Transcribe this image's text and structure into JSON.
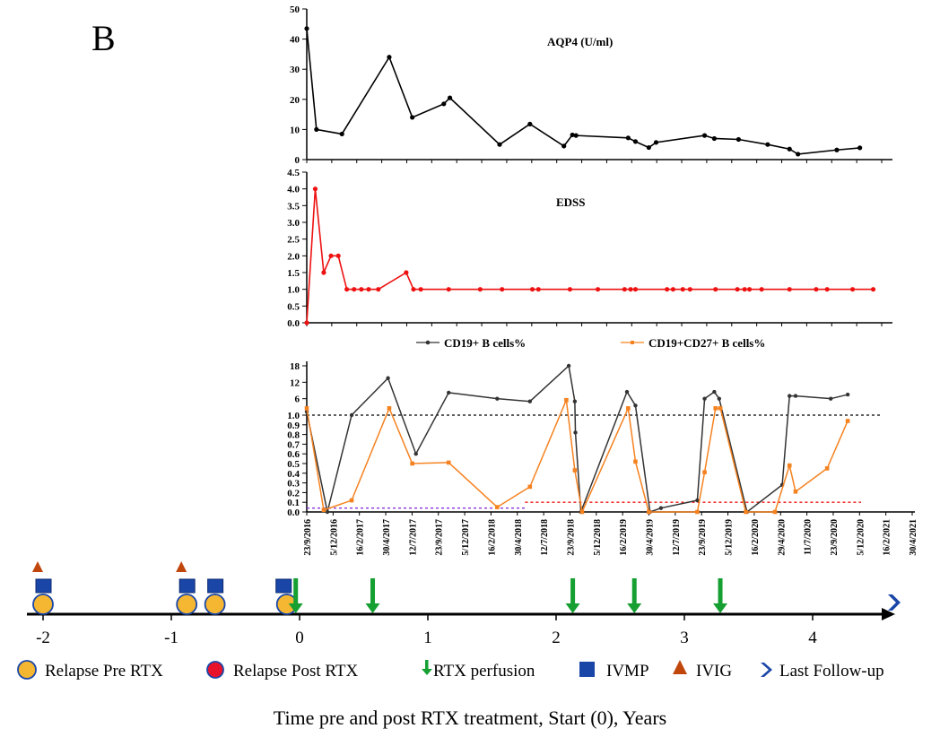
{
  "panel_label": "B",
  "chart_data": [
    {
      "type": "line",
      "title": "AQP4 (U/ml)",
      "ylim": [
        0,
        50
      ],
      "yticks": [
        "0",
        "10",
        "20",
        "30",
        "40",
        "50"
      ],
      "xlim_years": [
        -0.02,
        4.72
      ],
      "color": "#000000",
      "points": [
        [
          -0.02,
          43.5
        ],
        [
          0.06,
          10
        ],
        [
          0.27,
          8.5
        ],
        [
          0.66,
          34
        ],
        [
          0.85,
          14
        ],
        [
          1.11,
          18.5
        ],
        [
          1.16,
          20.5
        ],
        [
          1.57,
          5
        ],
        [
          1.82,
          11.8
        ],
        [
          2.1,
          4.5
        ],
        [
          2.17,
          8.2
        ],
        [
          2.2,
          8
        ],
        [
          2.63,
          7.2
        ],
        [
          2.69,
          6
        ],
        [
          2.8,
          4
        ],
        [
          2.86,
          5.7
        ],
        [
          3.26,
          8
        ],
        [
          3.34,
          7
        ],
        [
          3.54,
          6.7
        ],
        [
          3.78,
          5
        ],
        [
          3.96,
          3.5
        ],
        [
          4.03,
          1.8
        ],
        [
          4.35,
          3.2
        ],
        [
          4.54,
          3.9
        ]
      ]
    },
    {
      "type": "line",
      "title": "EDSS",
      "ylim": [
        0,
        4.5
      ],
      "yticks": [
        "0.0",
        "0.5",
        "1.0",
        "1.5",
        "2.0",
        "2.5",
        "3.0",
        "3.5",
        "4.0",
        "4.5"
      ],
      "xlim_years": [
        -0.02,
        4.72
      ],
      "color": "#ee1111",
      "points": [
        [
          -0.02,
          0
        ],
        [
          0.05,
          4
        ],
        [
          0.12,
          1.5
        ],
        [
          0.18,
          2
        ],
        [
          0.24,
          2
        ],
        [
          0.31,
          1
        ],
        [
          0.37,
          1
        ],
        [
          0.43,
          1
        ],
        [
          0.49,
          1
        ],
        [
          0.57,
          1
        ],
        [
          0.8,
          1.5
        ],
        [
          0.86,
          1
        ],
        [
          0.92,
          1
        ],
        [
          1.15,
          1
        ],
        [
          1.41,
          1
        ],
        [
          1.59,
          1
        ],
        [
          1.84,
          1
        ],
        [
          1.89,
          1
        ],
        [
          2.15,
          1
        ],
        [
          2.38,
          1
        ],
        [
          2.6,
          1
        ],
        [
          2.65,
          1
        ],
        [
          2.69,
          1
        ],
        [
          2.95,
          1
        ],
        [
          3.0,
          1
        ],
        [
          3.08,
          1
        ],
        [
          3.14,
          1
        ],
        [
          3.35,
          1
        ],
        [
          3.53,
          1
        ],
        [
          3.59,
          1
        ],
        [
          3.63,
          1
        ],
        [
          3.73,
          1
        ],
        [
          3.96,
          1
        ],
        [
          4.18,
          1
        ],
        [
          4.27,
          1
        ],
        [
          4.48,
          1
        ],
        [
          4.65,
          1
        ]
      ]
    },
    {
      "type": "line",
      "title": "",
      "y_upper_ticks": [
        "6",
        "12",
        "18"
      ],
      "y_lower_ticks": [
        "0.0",
        "0.1",
        "0.2",
        "0.3",
        "0.4",
        "0.5",
        "0.6",
        "0.7",
        "0.8",
        "0.9",
        "1.0"
      ],
      "x_tick_labels": [
        "23/9/2016",
        "5/12/2016",
        "16/2/2017",
        "30/4/2017",
        "12/7/2017",
        "23/9/2017",
        "5/12/2017",
        "16/2/2018",
        "30/4/2018",
        "12/7/2018",
        "23/9/2018",
        "5/12/2018",
        "16/2/2019",
        "30/4/2019",
        "12/7/2019",
        "23/9/2019",
        "5/12/2019",
        "16/2/2020",
        "29/4/2020",
        "11/7/2020",
        "23/9/2020",
        "5/12/2020",
        "16/2/2021",
        "30/4/2021"
      ],
      "reference_lines": [
        {
          "value": 1.0,
          "color": "#000000",
          "from_year": -0.02,
          "to_year": 4.72
        },
        {
          "value": 0.1,
          "color": "#ee1111",
          "from_year": 1.78,
          "to_year": 4.55
        },
        {
          "value": 0.04,
          "color": "#8833dd",
          "from_year": -0.02,
          "to_year": 1.78
        }
      ],
      "series": [
        {
          "name": "CD19+ B cells%",
          "color": "#333333",
          "points": [
            [
              -0.02,
              1.2
            ],
            [
              0.15,
              0
            ],
            [
              0.35,
              1.0
            ],
            [
              0.65,
              13.5
            ],
            [
              0.88,
              0.6
            ],
            [
              1.15,
              8.2
            ],
            [
              1.55,
              6
            ],
            [
              1.82,
              5
            ],
            [
              2.14,
              18
            ],
            [
              2.19,
              5
            ],
            [
              2.195,
              0.82
            ],
            [
              2.24,
              0
            ],
            [
              2.62,
              8.5
            ],
            [
              2.69,
              3.5
            ],
            [
              2.81,
              0
            ],
            [
              2.9,
              0.04
            ],
            [
              3.2,
              0.12
            ],
            [
              3.26,
              6
            ],
            [
              3.34,
              8.5
            ],
            [
              3.38,
              6
            ],
            [
              3.61,
              0
            ],
            [
              3.9,
              0.28
            ],
            [
              3.96,
              7
            ],
            [
              4.01,
              7
            ],
            [
              4.3,
              6
            ],
            [
              4.44,
              7.5
            ]
          ]
        },
        {
          "name": "CD19+CD27+ B cells%",
          "color": "#f58220",
          "points": [
            [
              -0.02,
              2.5
            ],
            [
              0.12,
              0.02
            ],
            [
              0.35,
              0.12
            ],
            [
              0.66,
              2.5
            ],
            [
              0.85,
              0.5
            ],
            [
              1.15,
              0.51
            ],
            [
              1.55,
              0.05
            ],
            [
              1.82,
              0.26
            ],
            [
              2.12,
              5.5
            ],
            [
              2.19,
              0.43
            ],
            [
              2.25,
              0
            ],
            [
              2.63,
              2.5
            ],
            [
              2.69,
              0.52
            ],
            [
              2.8,
              0
            ],
            [
              3.2,
              0
            ],
            [
              3.26,
              0.41
            ],
            [
              3.35,
              2.5
            ],
            [
              3.39,
              2.5
            ],
            [
              3.6,
              0
            ],
            [
              3.84,
              0
            ],
            [
              3.96,
              0.48
            ],
            [
              4.01,
              0.21
            ],
            [
              4.27,
              0.45
            ],
            [
              4.44,
              0.94
            ]
          ]
        }
      ]
    }
  ],
  "legend_top": {
    "cd19": "CD19+ B cells%",
    "cd1927": "CD19+CD27+ B cells%"
  },
  "timeline": {
    "x_ticks": [
      "-2",
      "-1",
      "0",
      "1",
      "2",
      "3",
      "4"
    ],
    "relapse_pre_rtx_years": [
      -2.0,
      -0.88,
      -0.66,
      -0.1
    ],
    "ivmp_years": [
      -2.0,
      -0.88,
      -0.66,
      -0.1
    ],
    "ivig_years": [
      -2.0,
      -0.88
    ],
    "rtx_perfusion_years": [
      -0.03,
      0.57,
      2.13,
      2.61,
      3.28
    ],
    "last_followup_year": 4.65
  },
  "legend_bottom": {
    "relapse_pre": "Relapse Pre RTX",
    "relapse_post": "Relapse Post RTX",
    "rtx": "RTX perfusion",
    "ivmp": "IVMP",
    "ivig": "IVIG",
    "followup": "Last Follow-up"
  },
  "caption": "Time pre and post RTX treatment, Start (0), Years",
  "colors": {
    "relapse_pre": "#f5b731",
    "relapse_post": "#e8132b",
    "ivmp": "#1a46a8",
    "ivig": "#c0460c",
    "rtx": "#16a032",
    "followup": "#1a46a8"
  }
}
